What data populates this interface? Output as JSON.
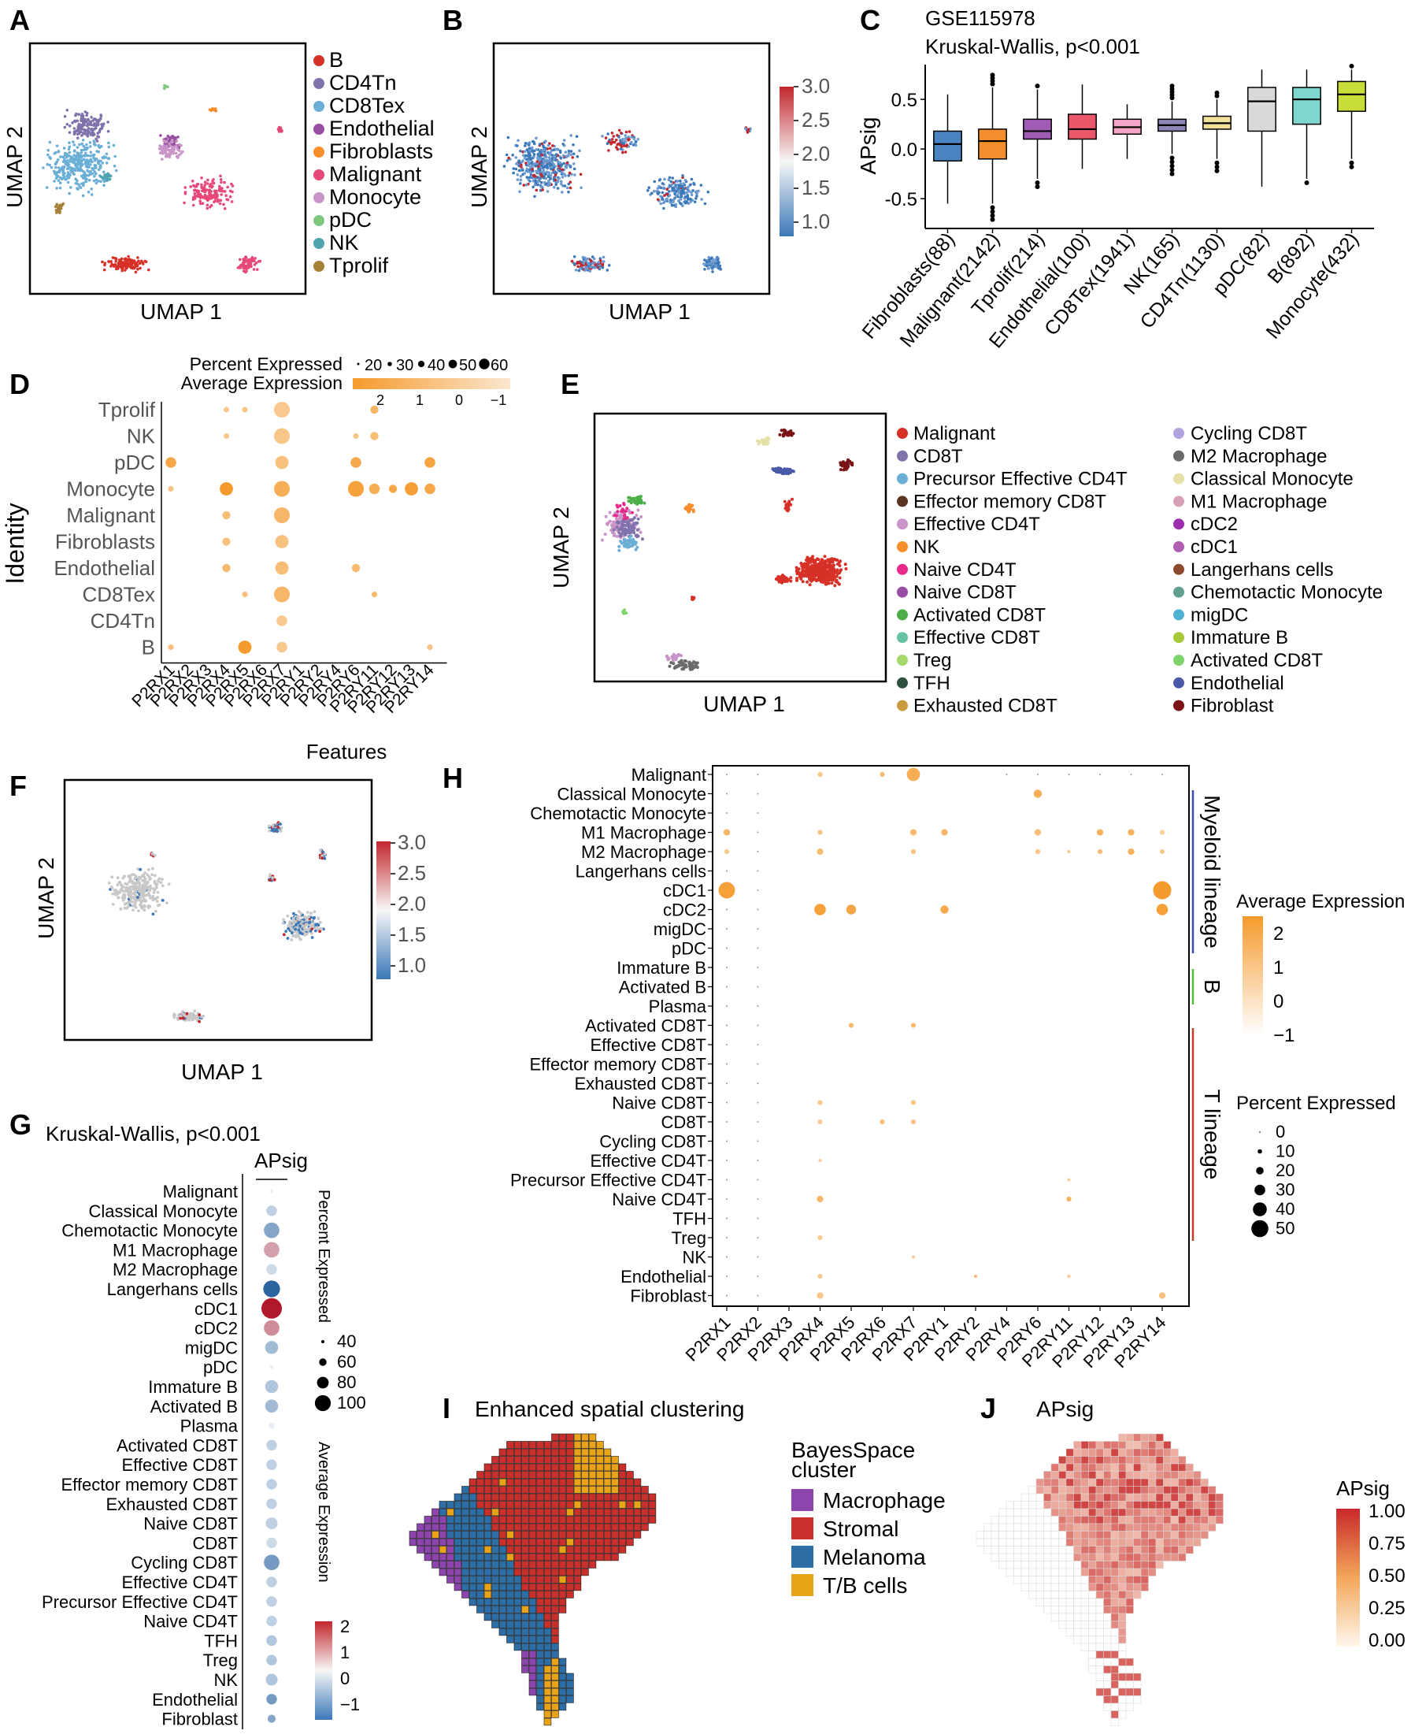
{
  "panels": {
    "A": "A",
    "B": "B",
    "C": "C",
    "D": "D",
    "E": "E",
    "F": "F",
    "G": "G",
    "H": "H",
    "I": "I",
    "J": "J"
  },
  "umap": {
    "x": "UMAP 1",
    "y": "UMAP 2"
  },
  "colors": {
    "B": "#d73027",
    "CD4Tn": "#8073ac",
    "CD8Tex": "#6baed6",
    "Endothelial": "#984ea3",
    "Fibroblasts": "#f98e2c",
    "Malignant": "#e7487a",
    "Monocyte": "#c994c7",
    "pDC": "#7fc97f",
    "NK": "#4fa3b0",
    "Tprolif": "#a6813a",
    "orange": "#f59a2c",
    "low": "#3b78b8",
    "high": "#c2272d"
  },
  "panelA": {
    "legend": [
      "B",
      "CD4Tn",
      "CD8Tex",
      "Endothelial",
      "Fibroblasts",
      "Malignant",
      "Monocyte",
      "pDC",
      "NK",
      "Tprolif"
    ]
  },
  "panelB": {
    "scale": [
      "3.0",
      "2.5",
      "2.0",
      "1.5",
      "1.0"
    ]
  },
  "panelC": {
    "title": "GSE115978",
    "subtitle": "Kruskal-Wallis, p<0.001",
    "ylabel": "APsig",
    "yticks": [
      "0.5",
      "0.0",
      "-0.5"
    ]
  },
  "panelD": {
    "legend_pct": "Percent Expressed",
    "legend_avg": "Average Expression",
    "pct_ticks": [
      "20",
      "30",
      "40",
      "50",
      "60"
    ],
    "avg_ticks": [
      "2",
      "1",
      "0",
      "−1"
    ],
    "ylabel": "Identity",
    "xlabel": "Features",
    "rows": [
      "Tprolif",
      "NK",
      "pDC",
      "Monocyte",
      "Malignant",
      "Fibroblasts",
      "Endothelial",
      "CD8Tex",
      "CD4Tn",
      "B"
    ],
    "features": [
      "P2RX1",
      "P2RX2",
      "P2RX3",
      "P2RX4",
      "P2RX5",
      "P2RX6",
      "P2RX7",
      "P2RY1",
      "P2RY2",
      "P2RY4",
      "P2RY6",
      "P2RY11",
      "P2RY12",
      "P2RY13",
      "P2RY14"
    ]
  },
  "panelE": {
    "legend_left": [
      "Malignant",
      "CD8T",
      "Precursor Effective CD4T",
      "Effector memory CD8T",
      "Effective CD4T",
      "NK",
      "Naive CD4T",
      "Naive CD8T",
      "Activated CD8T",
      "Effective CD8T",
      "Treg",
      "TFH",
      "Exhausted CD8T"
    ],
    "legend_left_colors": [
      "#d73027",
      "#8073ac",
      "#6baed6",
      "#5a3522",
      "#c994c7",
      "#f98e2c",
      "#e7298a",
      "#984ea3",
      "#4daf4a",
      "#66c2a5",
      "#a6d96a",
      "#2f4f3f",
      "#c89b3c"
    ],
    "legend_right": [
      "Cycling CD8T",
      "M2 Macrophage",
      "Classical Monocyte",
      "M1 Macrophage",
      "cDC2",
      "cDC1",
      "Langerhans cells",
      "Chemotactic Monocyte",
      "migDC",
      "Immature B",
      "Activated CD8T",
      "Endothelial",
      "Fibroblast"
    ],
    "legend_right_colors": [
      "#b3a2e0",
      "#6b6b6b",
      "#e6e0a6",
      "#d9a0b8",
      "#9c2fae",
      "#b05fb0",
      "#8c4a2f",
      "#5f9f8f",
      "#4eb3d3",
      "#a6c93a",
      "#7fd36b",
      "#4a5aa8",
      "#7a1416"
    ]
  },
  "panelF": {
    "scale": [
      "3.0",
      "2.5",
      "2.0",
      "1.5",
      "1.0"
    ]
  },
  "panelG": {
    "title": "Kruskal-Wallis, p<0.001",
    "col": "APsig",
    "rows": [
      "Malignant",
      "Classical Monocyte",
      "Chemotactic Monocyte",
      "M1 Macrophage",
      "M2 Macrophage",
      "Langerhans cells",
      "cDC1",
      "cDC2",
      "migDC",
      "pDC",
      "Immature B",
      "Activated B",
      "Plasma",
      "Activated CD8T",
      "Effective CD8T",
      "Effector memory CD8T",
      "Exhausted CD8T",
      "Naive CD8T",
      "CD8T",
      "Cycling CD8T",
      "Effective CD4T",
      "Precursor Effective CD4T",
      "Naive CD4T",
      "TFH",
      "Treg",
      "NK",
      "Endothelial",
      "Fibroblast"
    ],
    "pct_label": "Percent Expressed",
    "pct_ticks": [
      "40",
      "60",
      "80",
      "100"
    ],
    "avg_label": "Average Expression",
    "avg_ticks": [
      "2",
      "1",
      "0",
      "−1"
    ]
  },
  "panelH": {
    "rows": [
      "Malignant",
      "Classical Monocyte",
      "Chemotactic Monocyte",
      "M1 Macrophage",
      "M2 Macrophage",
      "Langerhans cells",
      "cDC1",
      "cDC2",
      "migDC",
      "pDC",
      "Immature B",
      "Activated B",
      "Plasma",
      "Activated CD8T",
      "Effective CD8T",
      "Effector memory CD8T",
      "Exhausted CD8T",
      "Naive CD8T",
      "CD8T",
      "Cycling CD8T",
      "Effective CD4T",
      "Precursor Effective CD4T",
      "Naive CD4T",
      "TFH",
      "Treg",
      "NK",
      "Endothelial",
      "Fibroblast"
    ],
    "features": [
      "P2RX1",
      "P2RX2",
      "P2RX3",
      "P2RX4",
      "P2RX5",
      "P2RX6",
      "P2RX7",
      "P2RY1",
      "P2RY2",
      "P2RY4",
      "P2RY6",
      "P2RY11",
      "P2RY12",
      "P2RY13",
      "P2RY14"
    ],
    "lineage": [
      "Myeloid lineage",
      "B",
      "T lineage"
    ],
    "avg_label": "Average Expression",
    "avg_ticks": [
      "2",
      "1",
      "0",
      "−1"
    ],
    "pct_label": "Percent Expressed",
    "pct_ticks": [
      "0",
      "10",
      "20",
      "30",
      "40",
      "50"
    ]
  },
  "panelI": {
    "title": "Enhanced spatial clustering",
    "legend_title1": "BayesSpace",
    "legend_title2": "cluster",
    "legend": [
      "Macrophage",
      "Stromal",
      "Melanoma",
      "T/B cells"
    ],
    "legend_colors": [
      "#8e44ad",
      "#c9302c",
      "#2e6ea6",
      "#e8a317"
    ]
  },
  "panelJ": {
    "title": "APsig",
    "scale_title": "APsig",
    "scale": [
      "1.00",
      "0.75",
      "0.50",
      "0.25",
      "0.00"
    ]
  },
  "chart_data": [
    {
      "type": "box",
      "title": "GSE115978",
      "subtitle": "Kruskal-Wallis, p<0.001",
      "ylabel": "APsig",
      "ylim": [
        -0.8,
        0.85
      ],
      "categories": [
        "Fibroblasts(88)",
        "Malignant(2142)",
        "Tprolif(214)",
        "Endothelial(100)",
        "CD8Tex(1941)",
        "NK(165)",
        "CD4Tn(1130)",
        "pDC(82)",
        "B(892)",
        "Monocyte(432)"
      ],
      "colors": [
        "#4a84c0",
        "#f28e2b",
        "#a05bb5",
        "#e9576a",
        "#f4a6c8",
        "#8b86b6",
        "#f1e19a",
        "#d9d9d9",
        "#7fd6cf",
        "#c8dc3a"
      ],
      "boxes": [
        {
          "min": -0.55,
          "q1": -0.12,
          "median": 0.05,
          "q3": 0.18,
          "max": 0.55
        },
        {
          "min": -0.55,
          "q1": -0.1,
          "median": 0.08,
          "q3": 0.2,
          "max": 0.62
        },
        {
          "min": -0.3,
          "q1": 0.1,
          "median": 0.18,
          "q3": 0.3,
          "max": 0.6
        },
        {
          "min": -0.2,
          "q1": 0.1,
          "median": 0.2,
          "q3": 0.35,
          "max": 0.65
        },
        {
          "min": -0.1,
          "q1": 0.15,
          "median": 0.22,
          "q3": 0.3,
          "max": 0.45
        },
        {
          "min": -0.05,
          "q1": 0.18,
          "median": 0.24,
          "q3": 0.3,
          "max": 0.48
        },
        {
          "min": -0.1,
          "q1": 0.2,
          "median": 0.26,
          "q3": 0.33,
          "max": 0.5
        },
        {
          "min": -0.38,
          "q1": 0.18,
          "median": 0.48,
          "q3": 0.62,
          "max": 0.8
        },
        {
          "min": -0.3,
          "q1": 0.25,
          "median": 0.5,
          "q3": 0.62,
          "max": 0.8
        },
        {
          "min": -0.1,
          "q1": 0.38,
          "median": 0.55,
          "q3": 0.68,
          "max": 0.8
        }
      ]
    },
    {
      "type": "dot",
      "title": "D",
      "rows": [
        "Tprolif",
        "NK",
        "pDC",
        "Monocyte",
        "Malignant",
        "Fibroblasts",
        "Endothelial",
        "CD8Tex",
        "CD4Tn",
        "B"
      ],
      "features": [
        "P2RX1",
        "P2RX2",
        "P2RX3",
        "P2RX4",
        "P2RX5",
        "P2RX6",
        "P2RX7",
        "P2RY1",
        "P2RY2",
        "P2RY4",
        "P2RY6",
        "P2RY11",
        "P2RY12",
        "P2RY13",
        "P2RY14"
      ],
      "dots": [
        [
          0,
          3,
          1,
          0.2
        ],
        [
          0,
          4,
          1,
          0.3
        ],
        [
          0,
          6,
          5,
          0.2
        ],
        [
          0,
          11,
          2,
          0.9
        ],
        [
          1,
          3,
          1,
          0.2
        ],
        [
          1,
          6,
          5,
          0.3
        ],
        [
          1,
          10,
          1,
          0.3
        ],
        [
          1,
          11,
          2,
          0.6
        ],
        [
          2,
          0,
          3,
          1.5
        ],
        [
          2,
          6,
          4,
          0.5
        ],
        [
          2,
          10,
          3,
          1.4
        ],
        [
          2,
          14,
          3,
          1.6
        ],
        [
          3,
          0,
          1,
          0.4
        ],
        [
          3,
          3,
          4,
          2.0
        ],
        [
          3,
          6,
          5,
          1.2
        ],
        [
          3,
          10,
          5,
          1.7
        ],
        [
          3,
          11,
          3,
          1.2
        ],
        [
          3,
          12,
          2,
          1.5
        ],
        [
          3,
          13,
          4,
          1.8
        ],
        [
          3,
          14,
          3,
          1.5
        ],
        [
          4,
          3,
          2,
          0.6
        ],
        [
          4,
          6,
          5,
          0.9
        ],
        [
          5,
          3,
          2,
          0.5
        ],
        [
          5,
          6,
          4,
          0.5
        ],
        [
          6,
          3,
          2,
          0.8
        ],
        [
          6,
          6,
          4,
          0.6
        ],
        [
          6,
          10,
          2,
          0.8
        ],
        [
          7,
          4,
          1,
          0.5
        ],
        [
          7,
          6,
          5,
          0.9
        ],
        [
          7,
          11,
          1,
          0.8
        ],
        [
          8,
          6,
          3,
          0.2
        ],
        [
          9,
          0,
          1,
          0.5
        ],
        [
          9,
          4,
          4,
          2.0
        ],
        [
          9,
          6,
          3,
          0.2
        ],
        [
          9,
          14,
          1,
          0.4
        ]
      ]
    },
    {
      "type": "dot",
      "title": "H",
      "rows": [
        "Malignant",
        "Classical Monocyte",
        "Chemotactic Monocyte",
        "M1 Macrophage",
        "M2 Macrophage",
        "Langerhans cells",
        "cDC1",
        "cDC2",
        "migDC",
        "pDC",
        "Immature B",
        "Activated B",
        "Plasma",
        "Activated CD8T",
        "Effective CD8T",
        "Effector memory CD8T",
        "Exhausted CD8T",
        "Naive CD8T",
        "CD8T",
        "Cycling CD8T",
        "Effective CD4T",
        "Precursor Effective CD4T",
        "Naive CD4T",
        "TFH",
        "Treg",
        "NK",
        "Endothelial",
        "Fibroblast"
      ],
      "features": [
        "P2RX1",
        "P2RX2",
        "P2RX3",
        "P2RX4",
        "P2RX5",
        "P2RX6",
        "P2RX7",
        "P2RY1",
        "P2RY2",
        "P2RY4",
        "P2RY6",
        "P2RY11",
        "P2RY12",
        "P2RY13",
        "P2RY14"
      ]
    },
    {
      "type": "dot",
      "title": "G",
      "column": "APsig",
      "rows": [
        "Malignant",
        "Classical Monocyte",
        "Chemotactic Monocyte",
        "M1 Macrophage",
        "M2 Macrophage",
        "Langerhans cells",
        "cDC1",
        "cDC2",
        "migDC",
        "pDC",
        "Immature B",
        "Activated B",
        "Plasma",
        "Activated CD8T",
        "Effective CD8T",
        "Effector memory CD8T",
        "Exhausted CD8T",
        "Naive CD8T",
        "CD8T",
        "Cycling CD8T",
        "Effective CD4T",
        "Precursor Effective CD4T",
        "Naive CD4T",
        "TFH",
        "Treg",
        "NK",
        "Endothelial",
        "Fibroblast"
      ],
      "avg_expression": [
        0.0,
        -0.2,
        -0.6,
        0.8,
        -0.1,
        -1.2,
        2.2,
        1.0,
        -0.4,
        0.0,
        -0.3,
        -0.4,
        0.0,
        -0.2,
        -0.2,
        -0.2,
        -0.2,
        -0.2,
        -0.1,
        -0.7,
        -0.2,
        -0.2,
        -0.2,
        -0.3,
        -0.3,
        -0.3,
        -0.7,
        -0.6
      ],
      "percent_expressed": [
        30,
        60,
        80,
        80,
        60,
        85,
        100,
        80,
        70,
        30,
        70,
        70,
        40,
        60,
        60,
        60,
        60,
        65,
        60,
        80,
        60,
        60,
        60,
        60,
        60,
        65,
        60,
        50
      ]
    }
  ]
}
